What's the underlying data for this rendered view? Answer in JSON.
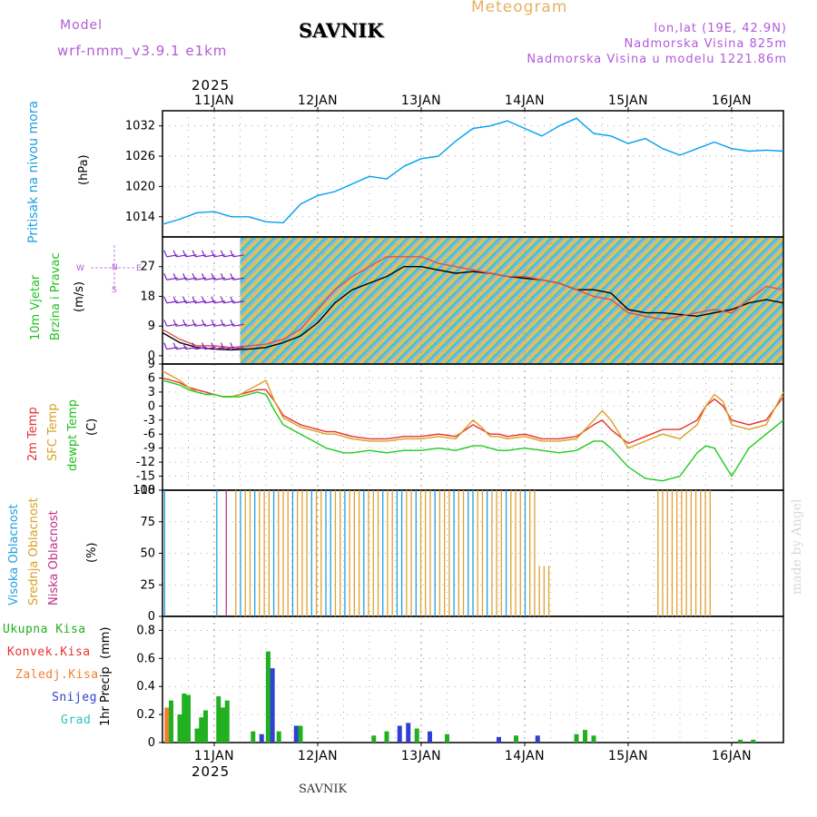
{
  "header": {
    "model_label": "Model",
    "model_name": "wrf-nmm_v3.9.1 e1km",
    "station": "SAVNIK",
    "title": "Meteogram",
    "lonlat": "lon,lat (19E, 42.9N)",
    "elevation": "Nadmorska Visina 825m",
    "elevation_model": "Nadmorska Visina u modelu 1221.86m"
  },
  "time_axis": {
    "year": "2025",
    "day_labels": [
      "11JAN",
      "12JAN",
      "13JAN",
      "14JAN",
      "15JAN",
      "16JAN"
    ],
    "start_offset_hours": -12,
    "end_offset_hours": 132
  },
  "credit": "made by Angel",
  "footer_station": "SAVNIK",
  "chart_data": [
    {
      "type": "line",
      "ylabel": "Pritisak na nivou mora",
      "unit": "(hPa)",
      "yticks": [
        1014,
        1020,
        1026,
        1032
      ],
      "ylim": [
        1010,
        1035
      ],
      "grid": true,
      "series": [
        {
          "color": "#00a0f0",
          "x": [
            -12,
            -8,
            -4,
            0,
            4,
            8,
            12,
            16,
            20,
            24,
            28,
            32,
            36,
            40,
            44,
            48,
            52,
            56,
            60,
            64,
            68,
            72,
            76,
            80,
            84,
            88,
            92,
            96,
            100,
            104,
            108,
            112,
            116,
            120,
            124,
            128,
            132
          ],
          "values": [
            1012.5,
            1013.5,
            1014.8,
            1015,
            1014,
            1014,
            1013,
            1012.8,
            1016.5,
            1018.2,
            1019,
            1020.5,
            1022,
            1021.5,
            1024,
            1025.5,
            1026,
            1029,
            1031.5,
            1032,
            1033,
            1031.5,
            1030,
            1032,
            1033.5,
            1030.5,
            1030,
            1028.5,
            1029.5,
            1027.5,
            1026.2,
            1027.5,
            1028.8,
            1027.5,
            1027,
            1027.2,
            1027
          ]
        }
      ]
    },
    {
      "type": "line",
      "ylabel": "10m Vjetar Brzina i Pravac",
      "unit": "(m/s)",
      "yticks": [
        0,
        9,
        18,
        27
      ],
      "ylim": [
        -2.5,
        36
      ],
      "grid": true,
      "compass": {
        "n": "N",
        "s": "S",
        "e": "E",
        "w": "W"
      },
      "series": [
        {
          "name": "wind speed",
          "color": "#000000",
          "x": [
            -12,
            -8,
            -4,
            0,
            4,
            8,
            12,
            16,
            20,
            24,
            28,
            32,
            36,
            40,
            44,
            48,
            52,
            56,
            60,
            64,
            68,
            72,
            76,
            80,
            84,
            88,
            92,
            96,
            100,
            104,
            108,
            112,
            116,
            120,
            124,
            128,
            132
          ],
          "values": [
            7,
            4,
            2.5,
            2,
            1.8,
            2,
            2.5,
            4,
            6,
            10,
            16,
            20,
            22,
            24,
            27,
            27,
            26,
            25,
            25.5,
            25,
            24,
            23.5,
            23,
            22,
            20,
            20,
            19,
            14,
            13,
            13,
            12.5,
            12,
            13,
            14,
            16,
            17,
            16
          ]
        },
        {
          "name": "gust",
          "color": "#e05050",
          "x": [
            -12,
            -8,
            -4,
            0,
            4,
            8,
            12,
            16,
            20,
            24,
            28,
            32,
            36,
            40,
            44,
            48,
            52,
            56,
            60,
            64,
            68,
            72,
            76,
            80,
            84,
            88,
            92,
            96,
            100,
            104,
            108,
            112,
            116,
            120,
            124,
            128,
            132
          ],
          "values": [
            8,
            5,
            3,
            3,
            2.5,
            3,
            3.5,
            5,
            8,
            14,
            20,
            24,
            27,
            30,
            30,
            30,
            28,
            27,
            26,
            25,
            24,
            24,
            23,
            22,
            20,
            18,
            17,
            13,
            12,
            11,
            12,
            13,
            14,
            13,
            17,
            21,
            20
          ]
        }
      ]
    },
    {
      "type": "line",
      "ylabels": [
        "2m Temp",
        "SFC Temp",
        "dewpt Temp"
      ],
      "unit": "(C)",
      "yticks": [
        -18,
        -15,
        -12,
        -9,
        -6,
        -3,
        0,
        3,
        6,
        9
      ],
      "ylim": [
        -18,
        9
      ],
      "grid": true,
      "series": [
        {
          "name": "2m Temp",
          "color": "#e83030",
          "x": [
            -12,
            -10,
            -8,
            -6,
            -4,
            -2,
            0,
            2,
            4,
            6,
            8,
            10,
            12,
            14,
            16,
            18,
            20,
            22,
            24,
            26,
            28,
            30,
            32,
            36,
            40,
            44,
            48,
            52,
            56,
            60,
            62,
            64,
            66,
            68,
            72,
            76,
            80,
            84,
            88,
            90,
            92,
            96,
            100,
            104,
            108,
            112,
            114,
            116,
            118,
            120,
            124,
            128,
            132
          ],
          "values": [
            6,
            5.5,
            5,
            4,
            3.5,
            3,
            2.5,
            2,
            2,
            2.5,
            3,
            3.5,
            3.5,
            1,
            -2,
            -3,
            -4,
            -4.5,
            -5,
            -5.5,
            -5.5,
            -6,
            -6.5,
            -7,
            -7,
            -6.5,
            -6.5,
            -6,
            -6.5,
            -4,
            -5,
            -6,
            -6,
            -6.5,
            -6,
            -7,
            -7,
            -6.5,
            -4,
            -3,
            -5,
            -8,
            -6.5,
            -5,
            -5,
            -3,
            0,
            1.5,
            0,
            -3,
            -4,
            -3,
            2
          ]
        },
        {
          "name": "SFC Temp",
          "color": "#d9a020",
          "x": [
            -12,
            -10,
            -8,
            -6,
            -4,
            -2,
            0,
            2,
            4,
            6,
            8,
            10,
            12,
            14,
            16,
            18,
            20,
            22,
            24,
            26,
            28,
            30,
            32,
            36,
            40,
            44,
            48,
            52,
            56,
            60,
            62,
            64,
            66,
            68,
            72,
            76,
            80,
            84,
            88,
            90,
            92,
            96,
            100,
            104,
            108,
            112,
            114,
            116,
            118,
            120,
            124,
            128,
            132
          ],
          "values": [
            7.5,
            6.5,
            5.5,
            4,
            3,
            2.5,
            2.5,
            2,
            2,
            2.5,
            3.5,
            4.5,
            5.5,
            1,
            -2.5,
            -3.5,
            -4.5,
            -5,
            -5.5,
            -6,
            -6,
            -6.5,
            -7,
            -7.5,
            -7.5,
            -7,
            -7,
            -6.5,
            -7,
            -3,
            -4.5,
            -6.5,
            -6.5,
            -7,
            -6.5,
            -7.5,
            -7.5,
            -7,
            -3,
            -1,
            -3,
            -9,
            -7.5,
            -6,
            -7,
            -4,
            0,
            2.5,
            1,
            -4,
            -5,
            -4,
            3
          ]
        },
        {
          "name": "dewpt Temp",
          "color": "#20cc20",
          "x": [
            -12,
            -10,
            -8,
            -6,
            -4,
            -2,
            0,
            2,
            4,
            6,
            8,
            10,
            12,
            14,
            16,
            18,
            20,
            22,
            24,
            26,
            28,
            30,
            32,
            36,
            40,
            44,
            48,
            52,
            56,
            60,
            62,
            64,
            66,
            68,
            72,
            76,
            80,
            84,
            88,
            90,
            92,
            96,
            100,
            104,
            108,
            112,
            114,
            116,
            118,
            120,
            124,
            128,
            132
          ],
          "values": [
            5.5,
            5,
            4.5,
            3.5,
            3,
            2.5,
            2.5,
            2,
            2,
            2,
            2.5,
            3,
            2.5,
            -1,
            -4,
            -5,
            -6,
            -7,
            -8,
            -9,
            -9.5,
            -10,
            -10,
            -9.5,
            -10,
            -9.5,
            -9.5,
            -9,
            -9.5,
            -8.5,
            -8.5,
            -9,
            -9.5,
            -9.5,
            -9,
            -9.5,
            -10,
            -9.5,
            -7.5,
            -7.5,
            -9,
            -13,
            -15.5,
            -16,
            -15,
            -10,
            -8.5,
            -9,
            -12,
            -15,
            -9,
            -6,
            -3
          ]
        }
      ]
    },
    {
      "type": "bar",
      "ylabels": [
        "Visoka Oblacnost",
        "Srednja Oblacnost",
        "Niska Oblacnost"
      ],
      "unit": "(%)",
      "yticks": [
        0,
        25,
        50,
        75,
        100
      ],
      "ylim": [
        0,
        100
      ],
      "grid": true,
      "series": [
        {
          "name": "Visoka Oblacnost",
          "color": "#20a0e0"
        },
        {
          "name": "Srednja Oblacnost",
          "color": "#e0a030"
        },
        {
          "name": "Niska Oblacnost",
          "color": "#c0308a"
        }
      ]
    },
    {
      "type": "bar",
      "ylabel": "1hr Precip",
      "unit": "(mm)",
      "yticks": [
        0,
        0.2,
        0.4,
        0.6,
        0.8
      ],
      "ylim": [
        0,
        0.9
      ],
      "grid": true,
      "series": [
        {
          "name": "Ukupna Kisa",
          "color": "#20b020"
        },
        {
          "name": "Konvek.Kisa",
          "color": "#e83030"
        },
        {
          "name": "Zaledj.Kisa",
          "color": "#f08030"
        },
        {
          "name": "Snijeg",
          "color": "#3040d0"
        },
        {
          "name": "Grad",
          "color": "#30c0c0"
        }
      ]
    }
  ]
}
